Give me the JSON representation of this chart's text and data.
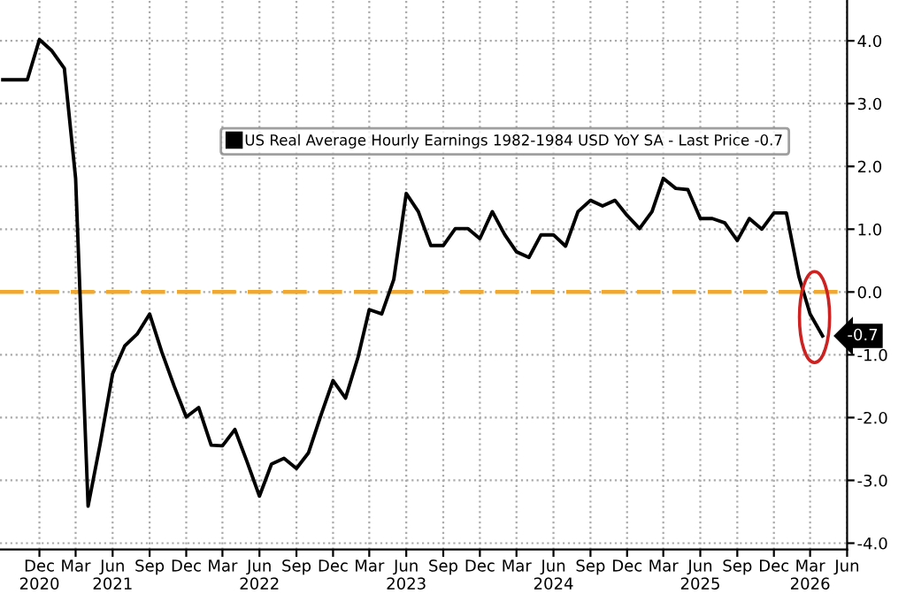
{
  "chart_data": {
    "type": "line",
    "x": [
      "2020-09",
      "2020-10",
      "2020-11",
      "2020-12",
      "2021-01",
      "2021-02",
      "2021-03",
      "2021-04",
      "2021-05",
      "2021-06",
      "2021-07",
      "2021-08",
      "2021-09",
      "2021-10",
      "2021-11",
      "2021-12",
      "2022-01",
      "2022-02",
      "2022-03",
      "2022-04",
      "2022-05",
      "2022-06",
      "2022-07",
      "2022-08",
      "2022-09",
      "2022-10",
      "2022-11",
      "2022-12",
      "2023-01",
      "2023-02",
      "2023-03",
      "2023-04",
      "2023-05",
      "2023-06",
      "2023-07",
      "2023-08",
      "2023-09",
      "2023-10",
      "2023-11",
      "2023-12",
      "2024-01",
      "2024-02",
      "2024-03",
      "2024-04",
      "2024-05",
      "2024-06",
      "2024-07",
      "2024-08",
      "2024-09",
      "2024-10",
      "2024-11",
      "2024-12",
      "2025-01",
      "2025-02",
      "2025-03",
      "2025-04",
      "2025-05",
      "2025-06",
      "2025-07",
      "2025-08",
      "2025-09",
      "2025-10",
      "2025-11",
      "2025-12",
      "2026-01",
      "2026-02",
      "2026-03",
      "2026-04"
    ],
    "series": [
      {
        "name": "US Real Average Hourly Earnings 1982-1984 USD YoY SA - Last Price -0.7",
        "color": "#000000",
        "values": [
          3.38,
          3.38,
          3.38,
          4.02,
          3.84,
          3.56,
          1.81,
          -3.41,
          -2.42,
          -1.3,
          -0.86,
          -0.67,
          -0.35,
          -0.95,
          -1.5,
          -1.99,
          -1.84,
          -2.44,
          -2.45,
          -2.19,
          -2.7,
          -3.25,
          -2.74,
          -2.65,
          -2.81,
          -2.56,
          -1.96,
          -1.41,
          -1.69,
          -1.04,
          -0.28,
          -0.35,
          0.2,
          1.57,
          1.28,
          0.74,
          0.74,
          1.01,
          1.01,
          0.85,
          1.28,
          0.91,
          0.64,
          0.55,
          0.91,
          0.91,
          0.73,
          1.28,
          1.46,
          1.37,
          1.46,
          1.22,
          1.01,
          1.28,
          1.81,
          1.65,
          1.63,
          1.17,
          1.17,
          1.1,
          0.82,
          1.17,
          1.0,
          1.26,
          1.26,
          0.25,
          -0.35,
          -0.7
        ]
      }
    ],
    "xlim": [
      "2020-08-25",
      "2026-06-01"
    ],
    "xticks": [
      {
        "value": "2020-12",
        "label": "Dec\n2020"
      },
      {
        "value": "2021-03",
        "label": "Mar"
      },
      {
        "value": "2021-06",
        "label": "Jun\n2021"
      },
      {
        "value": "2021-09",
        "label": "Sep"
      },
      {
        "value": "2021-12",
        "label": "Dec"
      },
      {
        "value": "2022-03",
        "label": "Mar"
      },
      {
        "value": "2022-06",
        "label": "Jun\n2022"
      },
      {
        "value": "2022-09",
        "label": "Sep"
      },
      {
        "value": "2022-12",
        "label": "Dec"
      },
      {
        "value": "2023-03",
        "label": "Mar"
      },
      {
        "value": "2023-06",
        "label": "Jun\n2023"
      },
      {
        "value": "2023-09",
        "label": "Sep"
      },
      {
        "value": "2023-12",
        "label": "Dec"
      },
      {
        "value": "2024-03",
        "label": "Mar"
      },
      {
        "value": "2024-06",
        "label": "Jun\n2024"
      },
      {
        "value": "2024-09",
        "label": "Sep"
      },
      {
        "value": "2024-12",
        "label": "Dec"
      },
      {
        "value": "2025-03",
        "label": "Mar"
      },
      {
        "value": "2025-06",
        "label": "Jun\n2025"
      },
      {
        "value": "2025-09",
        "label": "Sep"
      },
      {
        "value": "2025-12",
        "label": "Dec"
      },
      {
        "value": "2026-03",
        "label": "Mar\n2026"
      },
      {
        "value": "2026-06",
        "label": "Jun"
      }
    ],
    "ylim": [
      -4.1,
      4.65
    ],
    "yticks": [
      {
        "value": -4,
        "label": "-4.0"
      },
      {
        "value": -3,
        "label": "-3.0"
      },
      {
        "value": -2,
        "label": "-2.0"
      },
      {
        "value": -1,
        "label": "-1.0"
      },
      {
        "value": 0,
        "label": "0.0"
      },
      {
        "value": 1,
        "label": "1.0"
      },
      {
        "value": 2,
        "label": "2.0"
      },
      {
        "value": 3,
        "label": "3.0"
      },
      {
        "value": 4,
        "label": "4.0"
      }
    ],
    "ref_lines": [
      {
        "axis": "y",
        "value": 0,
        "color": "#f0a830",
        "line_style": "dashed"
      }
    ],
    "annotations": [
      {
        "text": "-0.7",
        "x": "2026-04",
        "y": -0.7
      }
    ],
    "grid": true,
    "legend": "top right",
    "marker": "none",
    "line_style": "solid"
  }
}
